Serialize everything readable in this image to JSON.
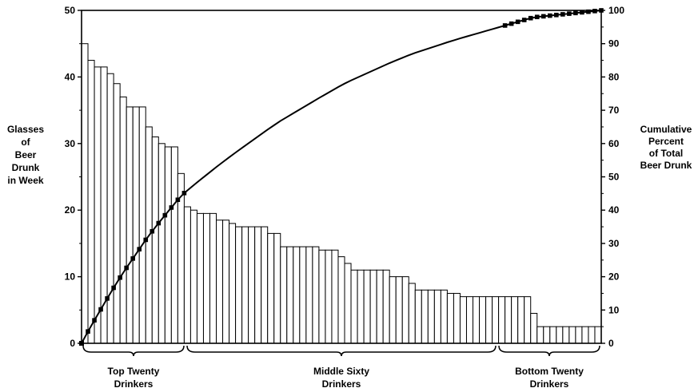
{
  "chart_data": {
    "type": "bar",
    "y_left_label": [
      "Glasses",
      "of",
      "Beer",
      "Drunk",
      "in Week"
    ],
    "y_right_label": [
      "Cumulative",
      "Percent",
      "of Total",
      "Beer Drunk"
    ],
    "y_left_ticks": [
      "0",
      "10",
      "20",
      "30",
      "40",
      "50"
    ],
    "y_right_ticks": [
      "0",
      "10",
      "20",
      "30",
      "40",
      "50",
      "60",
      "70",
      "80",
      "90",
      "100"
    ],
    "ylim_left": [
      0,
      50
    ],
    "ylim_right": [
      0,
      100
    ],
    "values": [
      45,
      42.5,
      41.5,
      41.5,
      40.5,
      39,
      37,
      35.5,
      35.5,
      35.5,
      32.5,
      31,
      30,
      29.5,
      29.5,
      25.5,
      20.5,
      20,
      19.5,
      19.5,
      19.5,
      18.5,
      18.5,
      18,
      17.5,
      17.5,
      17.5,
      17.5,
      17.5,
      16.5,
      16.5,
      14.5,
      14.5,
      14.5,
      14.5,
      14.5,
      14.5,
      14,
      14,
      14,
      13,
      12,
      11,
      11,
      11,
      11,
      11,
      11,
      10,
      10,
      10,
      9,
      8,
      8,
      8,
      8,
      8,
      7.5,
      7.5,
      7,
      7,
      7,
      7,
      7,
      7,
      7,
      7,
      7,
      7,
      7,
      4.5,
      2.5,
      2.5,
      2.5,
      2.5,
      2.5,
      2.5,
      2.5,
      2.5,
      2.5,
      2.5
    ],
    "groups": [
      {
        "name": [
          "Top Twenty",
          "Drinkers"
        ],
        "from": 0,
        "to": 20
      },
      {
        "name": [
          "Middle Sixty",
          "Drinkers"
        ],
        "from": 20,
        "to": 80
      },
      {
        "name": [
          "Bottom Twenty",
          "Drinkers"
        ],
        "from": 80,
        "to": 100
      }
    ]
  }
}
